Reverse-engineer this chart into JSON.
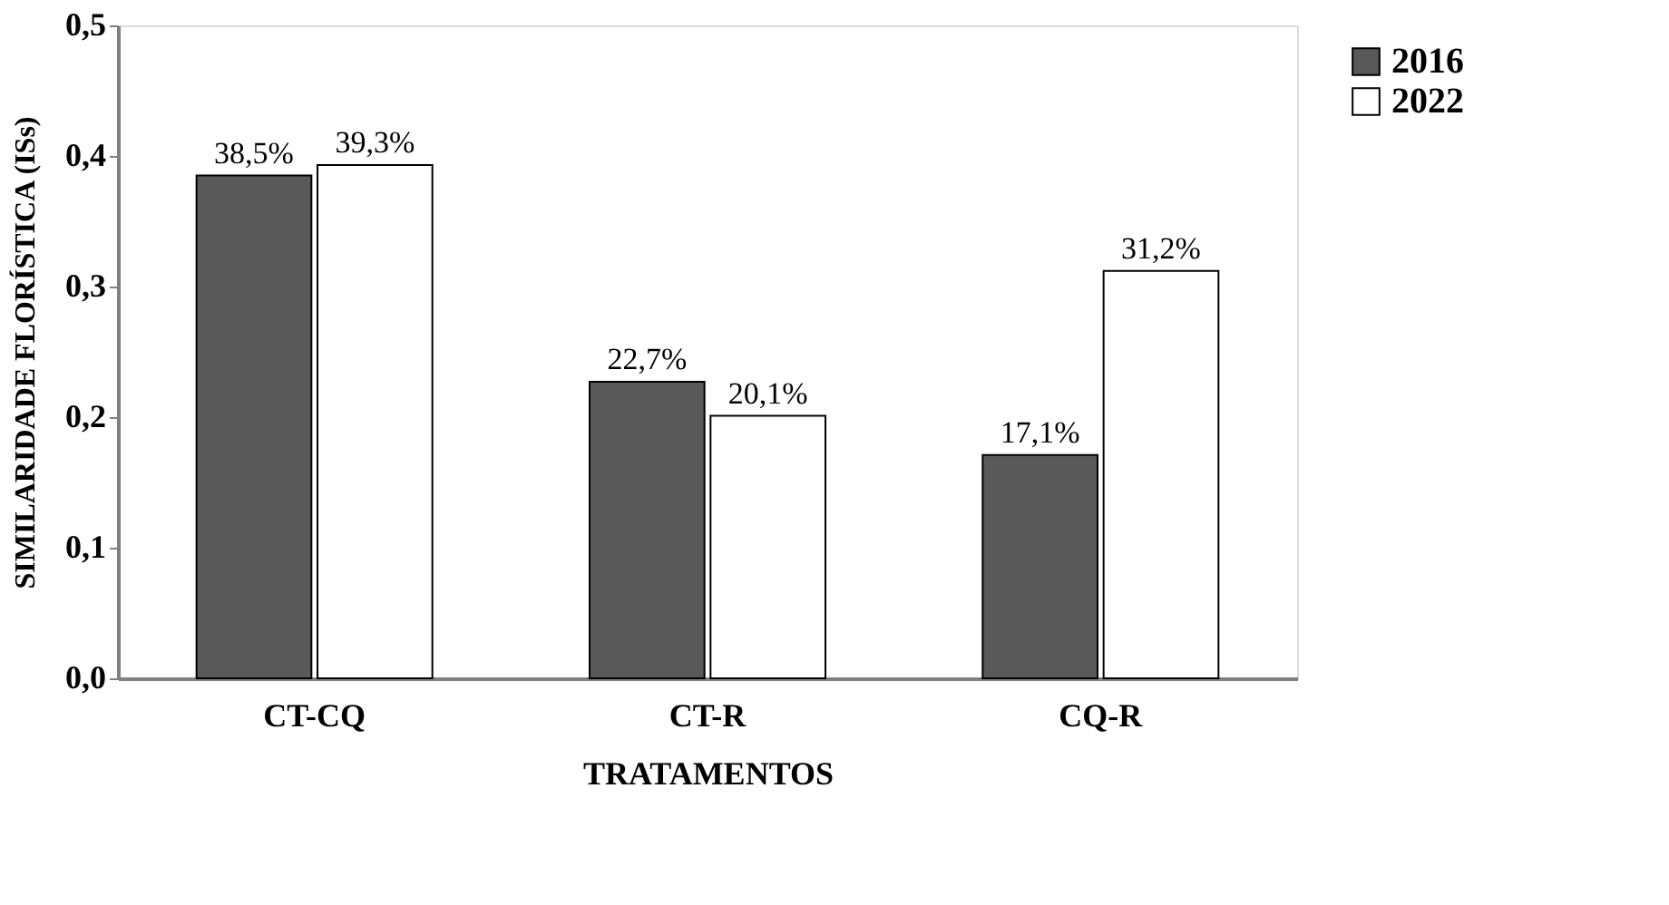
{
  "chart_data": {
    "type": "bar",
    "xlabel": "TRATAMENTOS",
    "ylabel": "SIMILARIDADE FLORÍSTICA (ISs)",
    "categories": [
      "CT-CQ",
      "CT-R",
      "CQ-R"
    ],
    "series": [
      {
        "name": "2016",
        "color": "#595959",
        "values": [
          0.385,
          0.227,
          0.171
        ],
        "value_labels": [
          "38,5%",
          "22,7%",
          "17,1%"
        ]
      },
      {
        "name": "2022",
        "color": "#ffffff",
        "values": [
          0.393,
          0.201,
          0.312
        ],
        "value_labels": [
          "39,3%",
          "20,1%",
          "31,2%"
        ]
      }
    ],
    "ylim": [
      0,
      0.5
    ],
    "yticks": [
      {
        "value": 0,
        "label": "0,0"
      },
      {
        "value": 0.1,
        "label": "0,1"
      },
      {
        "value": 0.2,
        "label": "0,2"
      },
      {
        "value": 0.3,
        "label": "0,3"
      },
      {
        "value": 0.4,
        "label": "0,4"
      },
      {
        "value": 0.5,
        "label": "0,5"
      }
    ],
    "grid": false,
    "legend": "right"
  }
}
